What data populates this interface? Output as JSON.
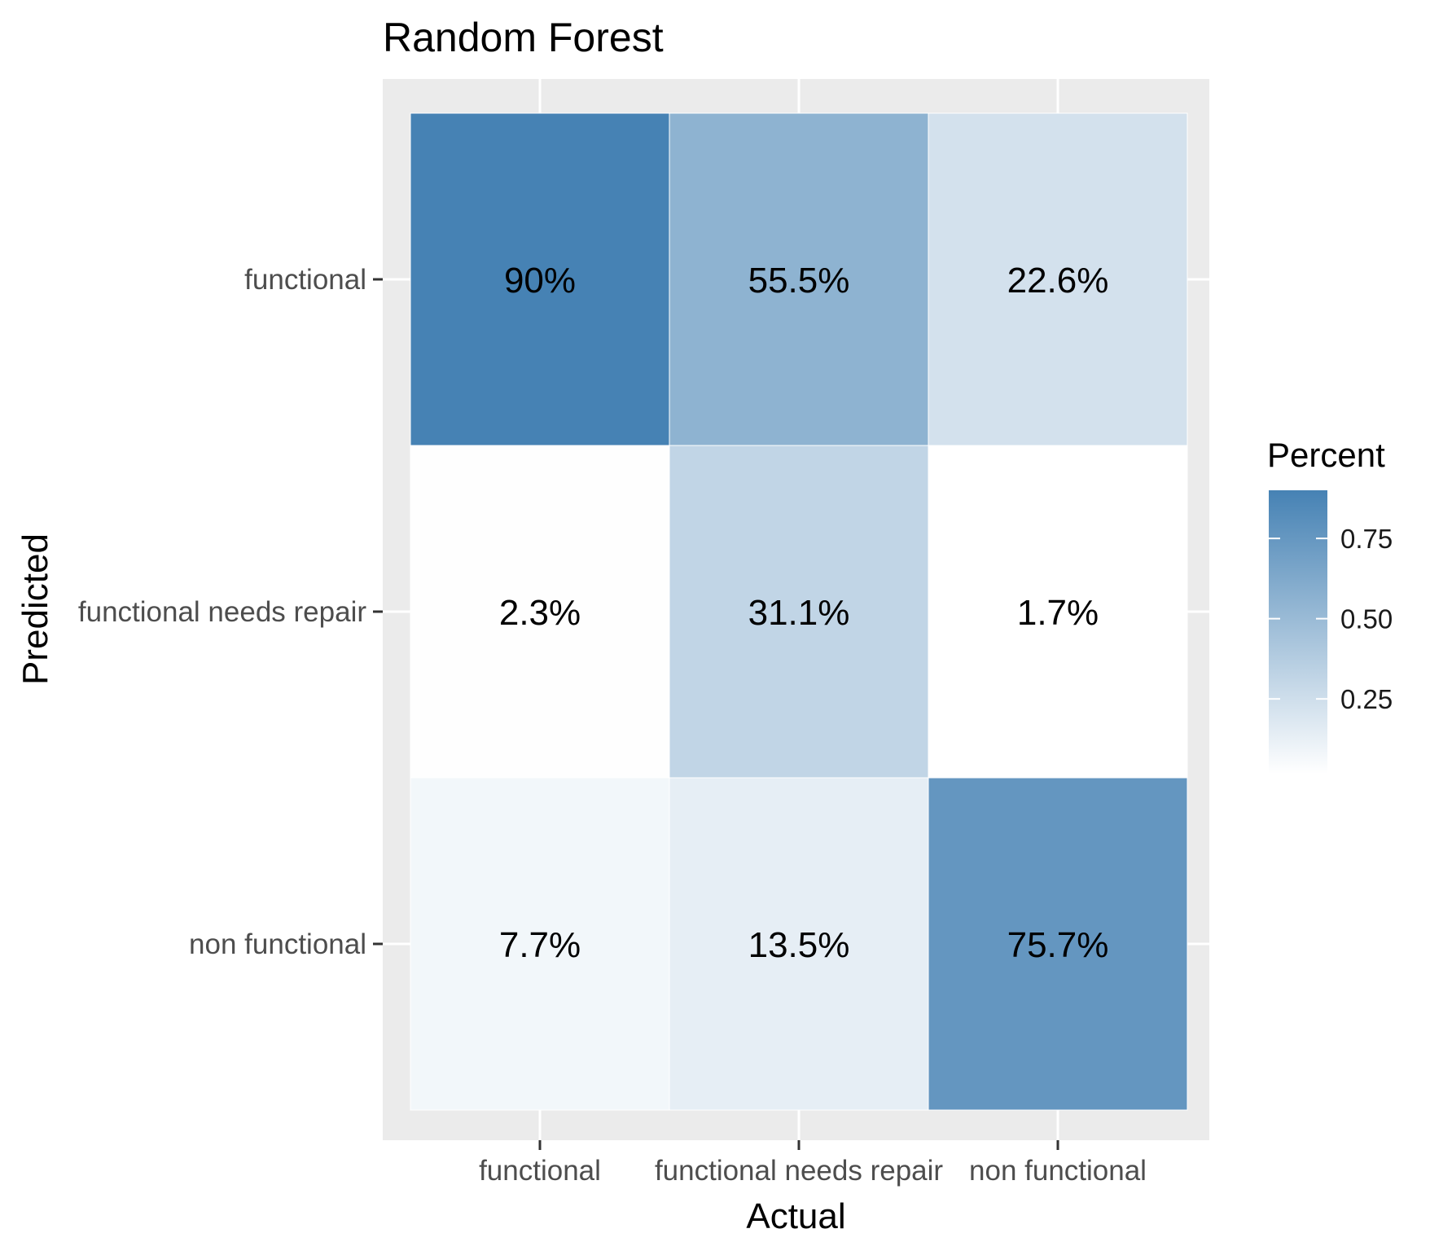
{
  "chart_data": {
    "type": "heatmap",
    "title": "Random Forest",
    "xlabel": "Actual",
    "ylabel": "Predicted",
    "x_categories": [
      "functional",
      "functional needs repair",
      "non functional"
    ],
    "y_categories": [
      "functional",
      "functional needs repair",
      "non functional"
    ],
    "cells": [
      {
        "actual": "functional",
        "predicted": "functional",
        "value": 0.9,
        "label": "90%"
      },
      {
        "actual": "functional needs repair",
        "predicted": "functional",
        "value": 0.555,
        "label": "55.5%"
      },
      {
        "actual": "non functional",
        "predicted": "functional",
        "value": 0.226,
        "label": "22.6%"
      },
      {
        "actual": "functional",
        "predicted": "functional needs repair",
        "value": 0.023,
        "label": "2.3%"
      },
      {
        "actual": "functional needs repair",
        "predicted": "functional needs repair",
        "value": 0.311,
        "label": "31.1%"
      },
      {
        "actual": "non functional",
        "predicted": "functional needs repair",
        "value": 0.017,
        "label": "1.7%"
      },
      {
        "actual": "functional",
        "predicted": "non functional",
        "value": 0.077,
        "label": "7.7%"
      },
      {
        "actual": "functional needs repair",
        "predicted": "non functional",
        "value": 0.135,
        "label": "13.5%"
      },
      {
        "actual": "non functional",
        "predicted": "non functional",
        "value": 0.757,
        "label": "75.7%"
      }
    ],
    "legend": {
      "title": "Percent",
      "ticks": [
        0.25,
        0.5,
        0.75
      ],
      "tick_labels": [
        "0.25",
        "0.50",
        "0.75"
      ],
      "range": [
        0.017,
        0.9
      ],
      "low_color": "#ffffff",
      "high_color": "#4682b4",
      "placement": "right"
    },
    "panel_background": "#ebebeb",
    "grid": true
  }
}
